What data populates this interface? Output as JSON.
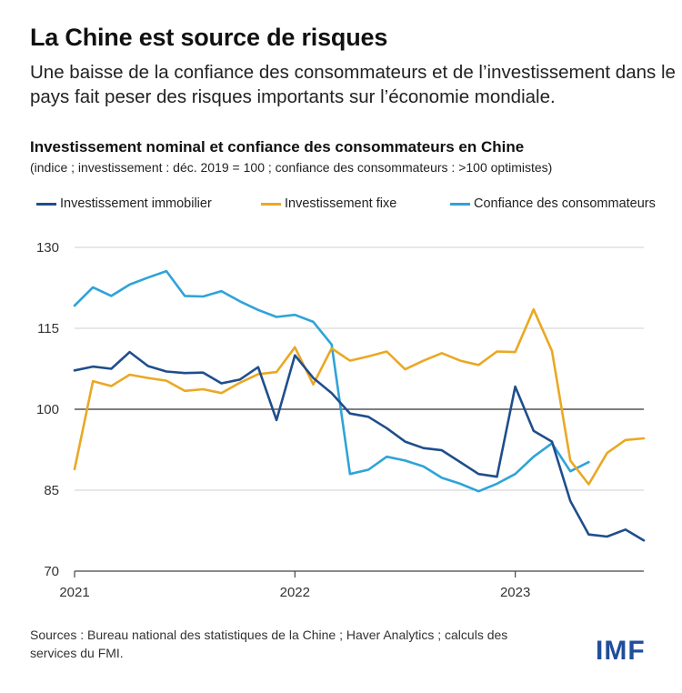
{
  "header": {
    "title": "La Chine est source de risques",
    "subtitle": "Une baisse de la confiance des consommateurs et de l’investissement dans le pays fait peser des risques importants sur l’économie mondiale."
  },
  "footer": {
    "source": "Sources : Bureau national des statistiques de la Chine ; Haver Analytics ; calculs des services du FMI.",
    "logo": "IMF"
  },
  "chart_data": {
    "type": "line",
    "title": "Investissement nominal et confiance des consommateurs en Chine",
    "subtitle": "(indice ; investissement : déc. 2019 = 100 ; confiance des consommateurs : >100 optimistes)",
    "x_index_start": 0,
    "x_tick_labels": [
      {
        "label": "2021",
        "index": 0
      },
      {
        "label": "2022",
        "index": 12
      },
      {
        "label": "2023",
        "index": 24
      }
    ],
    "xlim": [
      0,
      31
    ],
    "ylim": [
      70,
      130
    ],
    "y_ticks": [
      70,
      85,
      100,
      115,
      130
    ],
    "reference_line": 100,
    "legend": [
      {
        "name": "Investissement immobilier",
        "color": "#1f4e8c"
      },
      {
        "name": "Investissement fixe",
        "color": "#eaa824"
      },
      {
        "name": "Confiance des consommateurs",
        "color": "#2fa3d8"
      }
    ],
    "series": [
      {
        "name": "Investissement immobilier",
        "color": "#1f4e8c",
        "values": [
          107.2,
          107.9,
          107.5,
          110.6,
          108.0,
          107.0,
          106.7,
          106.8,
          104.8,
          105.5,
          107.8,
          98.0,
          110.0,
          105.8,
          103.0,
          99.2,
          98.6,
          96.5,
          94.0,
          92.8,
          92.4,
          90.2,
          88.0,
          87.5,
          104.2,
          96.0,
          94.0,
          83.0,
          76.8,
          76.4,
          77.7,
          75.7
        ]
      },
      {
        "name": "Investissement fixe",
        "color": "#eaa824",
        "values": [
          88.9,
          105.2,
          104.3,
          106.4,
          105.8,
          105.3,
          103.4,
          103.7,
          103.0,
          104.9,
          106.5,
          106.9,
          111.5,
          104.6,
          111.3,
          109.0,
          109.8,
          110.7,
          107.4,
          109.0,
          110.4,
          109.0,
          108.2,
          110.7,
          110.6,
          118.5,
          110.8,
          90.5,
          86.1,
          91.9,
          94.3,
          94.6
        ]
      },
      {
        "name": "Confiance des consommateurs",
        "color": "#2fa3d8",
        "values": [
          119.2,
          122.6,
          121.0,
          123.1,
          124.4,
          125.6,
          121.0,
          120.9,
          121.9,
          120.0,
          118.4,
          117.1,
          117.5,
          116.2,
          112.0,
          88.0,
          88.8,
          91.2,
          90.5,
          89.4,
          87.3,
          86.2,
          84.8,
          86.2,
          88.0,
          91.2,
          93.7,
          88.5,
          90.2,
          null,
          null,
          null
        ]
      }
    ]
  }
}
